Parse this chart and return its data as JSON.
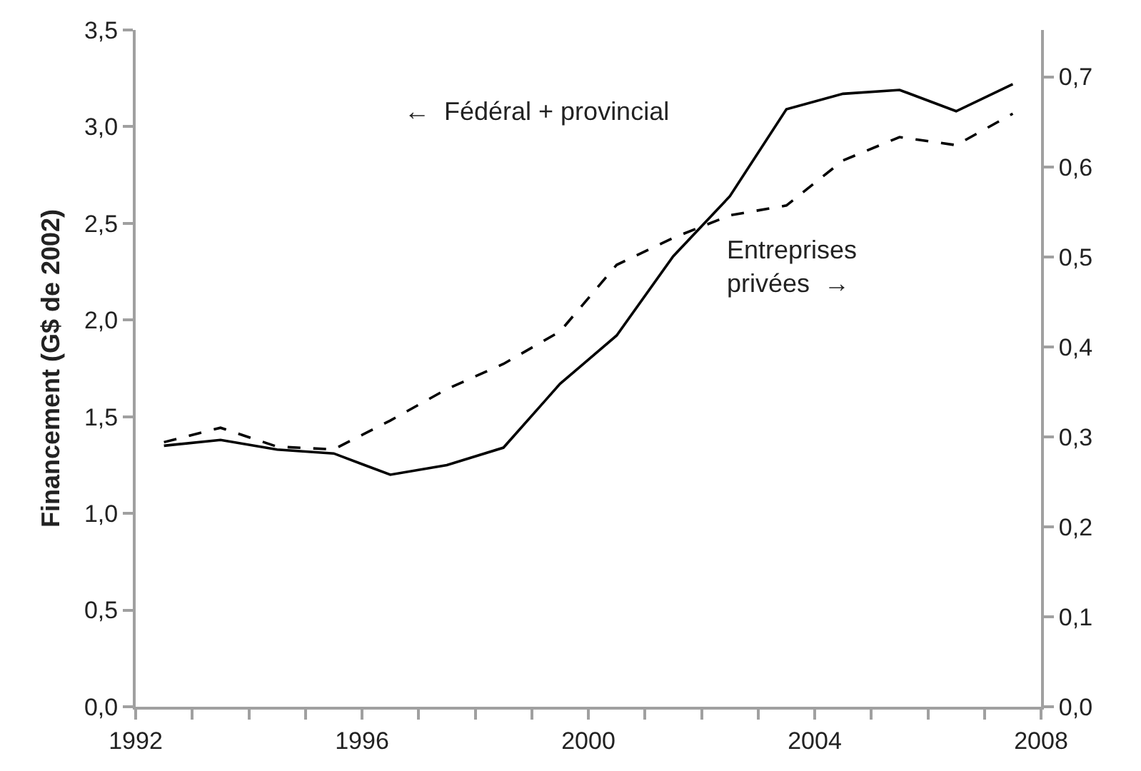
{
  "chart_data": {
    "type": "line",
    "ylabel": "Financement (G$ de 2002)",
    "x": [
      1992.5,
      1993.5,
      1994.5,
      1995.5,
      1996.5,
      1997.5,
      1998.5,
      1999.5,
      2000.5,
      2001.5,
      2002.5,
      2003.5,
      2004.5,
      2005.5,
      2006.5,
      2007.5
    ],
    "series": [
      {
        "color": "#000000",
        "line_style": "solid",
        "values": [
          1.35,
          1.38,
          1.33,
          1.31,
          1.2,
          1.25,
          1.34,
          1.67,
          1.92,
          2.33,
          2.64,
          3.09,
          3.17,
          3.19,
          3.08,
          3.22
        ]
      },
      {
        "color": "#000000",
        "line_style": "dashed",
        "axis": "y2",
        "values": [
          0.294,
          0.31,
          0.289,
          0.286,
          0.318,
          0.353,
          0.381,
          0.417,
          0.491,
          0.521,
          0.546,
          0.557,
          0.607,
          0.633,
          0.624,
          0.659
        ]
      }
    ],
    "xlim": [
      1992,
      2008
    ],
    "xticks": [
      1992,
      {
        "value": 1993,
        "label": null
      },
      {
        "value": 1994,
        "label": null
      },
      {
        "value": 1995,
        "label": null
      },
      1996,
      {
        "value": 1997,
        "label": null
      },
      {
        "value": 1998,
        "label": null
      },
      {
        "value": 1999,
        "label": null
      },
      2000,
      {
        "value": 2001,
        "label": null
      },
      {
        "value": 2002,
        "label": null
      },
      {
        "value": 2003,
        "label": null
      },
      2004,
      {
        "value": 2005,
        "label": null
      },
      {
        "value": 2006,
        "label": null
      },
      {
        "value": 2007,
        "label": null
      },
      2008
    ],
    "ylim": [
      0,
      3.5
    ],
    "yticks": [
      {
        "value": 0,
        "label": "0,0"
      },
      {
        "value": 0.5,
        "label": "0,5"
      },
      {
        "value": 1,
        "label": "1,0"
      },
      {
        "value": 1.5,
        "label": "1,5"
      },
      {
        "value": 2,
        "label": "2,0"
      },
      {
        "value": 2.5,
        "label": "2,5"
      },
      {
        "value": 3,
        "label": "3,0"
      },
      {
        "value": 3.5,
        "label": "3,5"
      }
    ],
    "y2lim": [
      0,
      0.752
    ],
    "y2ticks": [
      {
        "value": 0,
        "label": "0,0"
      },
      {
        "value": 0.1,
        "label": "0,1"
      },
      {
        "value": 0.2,
        "label": "0,2"
      },
      {
        "value": 0.3,
        "label": "0,3"
      },
      {
        "value": 0.4,
        "label": "0,4"
      },
      {
        "value": 0.5,
        "label": "0,5"
      },
      {
        "value": 0.6,
        "label": "0,6"
      },
      {
        "value": 0.7,
        "label": "0,7"
      }
    ],
    "annotations": [
      "←  Fédéral + provincial",
      "Entreprises\nprivées  →"
    ],
    "legend": false,
    "marker": "none"
  }
}
